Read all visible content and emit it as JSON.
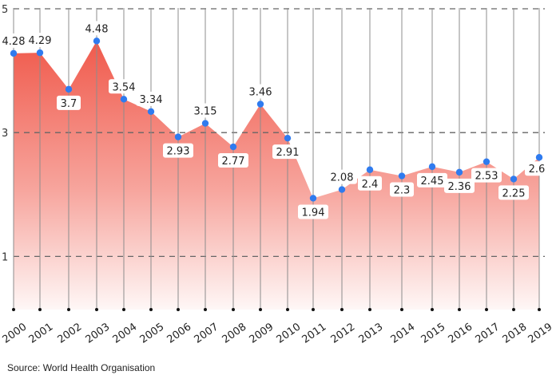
{
  "chart_data": {
    "type": "area",
    "title": "",
    "xlabel": "",
    "ylabel": "",
    "categories": [
      "2000",
      "2001",
      "2002",
      "2003",
      "2004",
      "2005",
      "2006",
      "2007",
      "2008",
      "2009",
      "2010",
      "2011",
      "2012",
      "2013",
      "2014",
      "2015",
      "2016",
      "2017",
      "2018",
      "2019"
    ],
    "values": [
      4.28,
      4.29,
      3.7,
      4.48,
      3.54,
      3.34,
      2.93,
      3.15,
      2.77,
      3.46,
      2.91,
      1.94,
      2.08,
      2.4,
      2.3,
      2.45,
      2.36,
      2.53,
      2.25,
      2.6
    ],
    "data_labels": [
      "4.28",
      "4.29",
      "3.7",
      "4.48",
      "3.54",
      "3.34",
      "2.93",
      "3.15",
      "2.77",
      "3.46",
      "2.91",
      "1.94",
      "2.08",
      "2.4",
      "2.3",
      "2.45",
      "2.36",
      "2.53",
      "2.25",
      "2.6"
    ],
    "yticks": [
      5,
      3,
      1
    ],
    "ytick_labels": [
      "5",
      "3",
      "1"
    ],
    "ylim": [
      0,
      5
    ],
    "grid": true,
    "legend": "none",
    "colors": {
      "fill_top": "#f05a4c",
      "fill_bottom": "#ffffff",
      "marker": "#2f7bef",
      "gridline": "#666666",
      "vline": "#8c8c8c"
    }
  },
  "source": "Source: World Health Organisation"
}
